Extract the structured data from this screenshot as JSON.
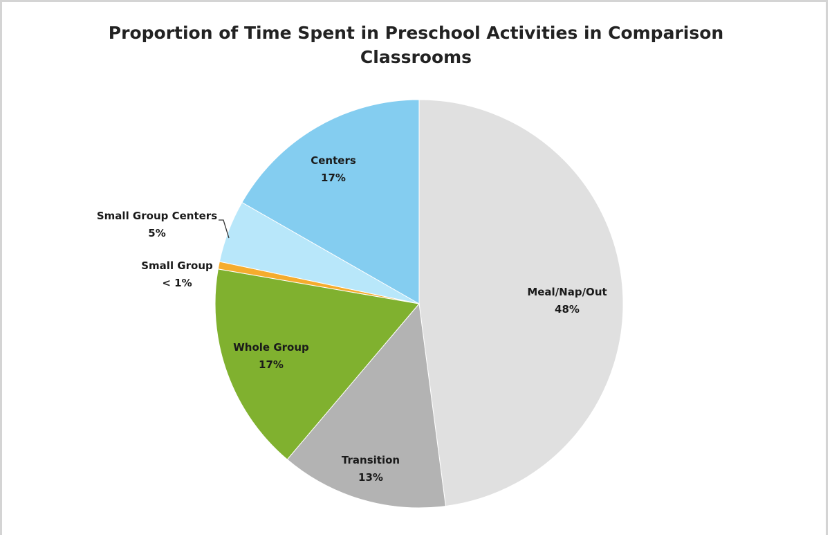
{
  "chart_data": {
    "type": "pie",
    "title_lines": [
      "Proportion of Time Spent in Preschool Activities in Comparison",
      "Classrooms"
    ],
    "slices": [
      {
        "label": "Meal/Nap/Out",
        "value_label": "48%",
        "value": 48.4,
        "color": "#e0e0e0"
      },
      {
        "label": "Transition",
        "value_label": "13%",
        "value": 13.4,
        "color": "#b3b3b3"
      },
      {
        "label": "Whole Group",
        "value_label": "17%",
        "value": 16.7,
        "color": "#80b12f"
      },
      {
        "label": "Small Group",
        "value_label": "< 1%",
        "value": 0.6,
        "color": "#f5ac2d"
      },
      {
        "label": "Small Group Centers",
        "value_label": "5%",
        "value": 5.0,
        "color": "#b8e7fa"
      },
      {
        "label": "Centers",
        "value_label": "17%",
        "value": 16.9,
        "color": "#84cdf0"
      }
    ],
    "start": "top",
    "direction": "clockwise",
    "legend": "none"
  }
}
